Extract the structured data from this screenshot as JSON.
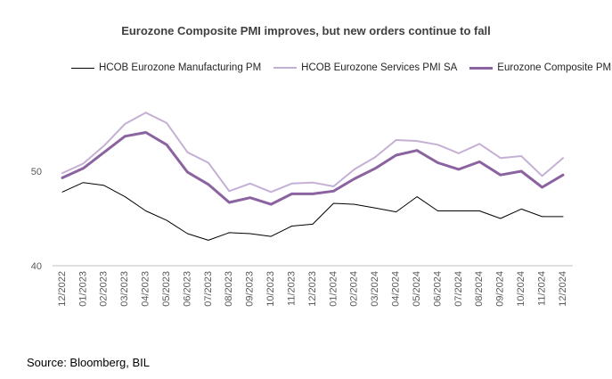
{
  "chart_data": {
    "type": "line",
    "title": "Eurozone Composite PMI improves, but new orders continue to fall",
    "xlabel": "",
    "ylabel": "",
    "categories": [
      "12/2022",
      "01/2023",
      "02/2023",
      "03/2023",
      "04/2023",
      "05/2023",
      "06/2023",
      "07/2023",
      "08/2023",
      "09/2023",
      "10/2023",
      "11/2023",
      "12/2023",
      "01/2024",
      "02/2024",
      "03/2024",
      "04/2024",
      "05/2024",
      "06/2024",
      "07/2024",
      "08/2024",
      "09/2024",
      "10/2024",
      "11/2024",
      "12/2024"
    ],
    "ylim": [
      40,
      58
    ],
    "yticks": [
      40,
      50
    ],
    "legend_position": "top",
    "grid": false,
    "series": [
      {
        "name": "HCOB Eurozone Manufacturing PM",
        "color": "#000000",
        "values": [
          47.8,
          48.8,
          48.5,
          47.3,
          45.8,
          44.8,
          43.4,
          42.7,
          43.5,
          43.4,
          43.1,
          44.2,
          44.4,
          46.6,
          46.5,
          46.1,
          45.7,
          47.3,
          45.8,
          45.8,
          45.8,
          45.0,
          46.0,
          45.2,
          45.2
        ]
      },
      {
        "name": "HCOB Eurozone Services PMI SA",
        "color": "#c5b0d5",
        "values": [
          49.8,
          50.8,
          52.7,
          55.0,
          56.2,
          55.1,
          52.0,
          50.9,
          47.9,
          48.7,
          47.8,
          48.7,
          48.8,
          48.4,
          50.2,
          51.5,
          53.3,
          53.2,
          52.8,
          51.9,
          52.9,
          51.4,
          51.6,
          49.5,
          51.4
        ]
      },
      {
        "name": "Eurozone Composite PMI",
        "color": "#8a63a0",
        "values": [
          49.3,
          50.3,
          52.0,
          53.7,
          54.1,
          52.8,
          49.9,
          48.6,
          46.7,
          47.2,
          46.5,
          47.6,
          47.6,
          47.9,
          49.2,
          50.3,
          51.7,
          52.2,
          50.9,
          50.2,
          51.0,
          49.6,
          50.0,
          48.3,
          49.6
        ]
      }
    ]
  },
  "footer": {
    "source": "Source: Bloomberg, BIL"
  }
}
